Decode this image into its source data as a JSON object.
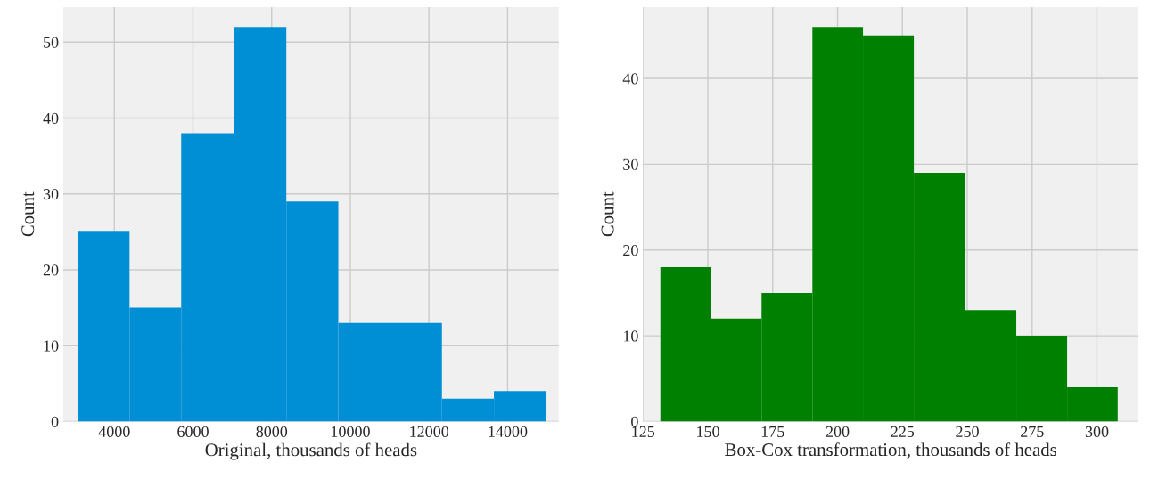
{
  "chart_data": [
    {
      "type": "histogram",
      "xlabel": "Original, thousands of heads",
      "ylabel": "Count",
      "color": "#008fd5",
      "bins": [
        3064,
        4386,
        5699,
        7050,
        8373,
        9695,
        11017,
        12330,
        13652,
        14965
      ],
      "values": [
        25,
        15,
        38,
        52,
        29,
        13,
        13,
        3,
        4
      ],
      "xlim": [
        2700,
        15300
      ],
      "ylim": [
        0,
        54.6
      ],
      "xticks": [
        4000,
        6000,
        8000,
        10000,
        12000,
        14000
      ],
      "yticks": [
        0,
        10,
        20,
        30,
        40,
        50
      ],
      "grid": true
    },
    {
      "type": "histogram",
      "xlabel": "Box-Cox transformation, thousands of heads",
      "ylabel": "Count",
      "color": "#008000",
      "bins": [
        131.7,
        151.1,
        170.7,
        190.3,
        209.8,
        229.4,
        249.0,
        268.9,
        288.5,
        308.0
      ],
      "values": [
        18,
        12,
        15,
        46,
        45,
        29,
        13,
        10,
        4
      ],
      "xlim": [
        125,
        316
      ],
      "ylim": [
        0,
        48.3
      ],
      "xticks": [
        125,
        150,
        175,
        200,
        225,
        250,
        275,
        300
      ],
      "yticks": [
        0,
        10,
        20,
        30,
        40
      ],
      "grid": true
    }
  ]
}
